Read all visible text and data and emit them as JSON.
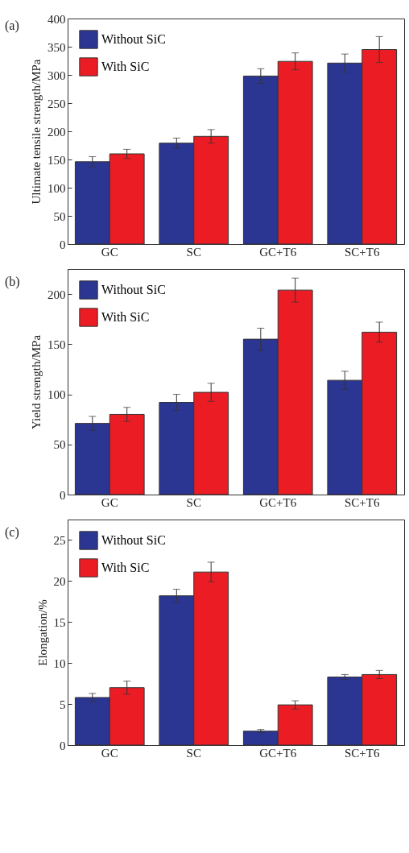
{
  "chart_data": [
    {
      "type": "bar",
      "title": "(a)",
      "ylabel": "Ultimate tensile strength/MPa",
      "categories": [
        "GC",
        "SC",
        "GC+T6",
        "SC+T6"
      ],
      "ylim": [
        0,
        400
      ],
      "yticks": [
        0,
        50,
        100,
        150,
        200,
        250,
        300,
        350,
        400
      ],
      "legend": "top left",
      "series": [
        {
          "name": "Without SiC",
          "color": "#2b3592",
          "values": [
            146,
            179,
            298,
            321
          ],
          "errors": [
            9,
            9,
            13,
            16
          ]
        },
        {
          "name": "With SiC",
          "color": "#ec1c24",
          "values": [
            160,
            191,
            324,
            345
          ],
          "errors": [
            8,
            12,
            15,
            23
          ]
        }
      ]
    },
    {
      "type": "bar",
      "title": "(b)",
      "ylabel": "Yield strength/MPa",
      "categories": [
        "GC",
        "SC",
        "GC+T6",
        "SC+T6"
      ],
      "ylim": [
        0,
        225
      ],
      "yticks": [
        0,
        50,
        100,
        150,
        200
      ],
      "legend": "top left",
      "series": [
        {
          "name": "Without SiC",
          "color": "#2b3592",
          "values": [
            71,
            92,
            155,
            114
          ],
          "errors": [
            7,
            8,
            11,
            9
          ]
        },
        {
          "name": "With SiC",
          "color": "#ec1c24",
          "values": [
            80,
            102,
            204,
            162
          ],
          "errors": [
            7,
            9,
            12,
            10
          ]
        }
      ]
    },
    {
      "type": "bar",
      "title": "(c)",
      "ylabel": "Elongation/%",
      "categories": [
        "GC",
        "SC",
        "GC+T6",
        "SC+T6"
      ],
      "ylim": [
        0,
        27.5
      ],
      "yticks": [
        0,
        5,
        10,
        15,
        20,
        25
      ],
      "legend": "top left",
      "series": [
        {
          "name": "Without SiC",
          "color": "#2b3592",
          "values": [
            5.8,
            18.2,
            1.7,
            8.3
          ],
          "errors": [
            0.5,
            0.8,
            0.2,
            0.3
          ]
        },
        {
          "name": "With SiC",
          "color": "#ec1c24",
          "values": [
            7.0,
            21.1,
            4.9,
            8.6
          ],
          "errors": [
            0.8,
            1.2,
            0.5,
            0.5
          ]
        }
      ]
    }
  ]
}
